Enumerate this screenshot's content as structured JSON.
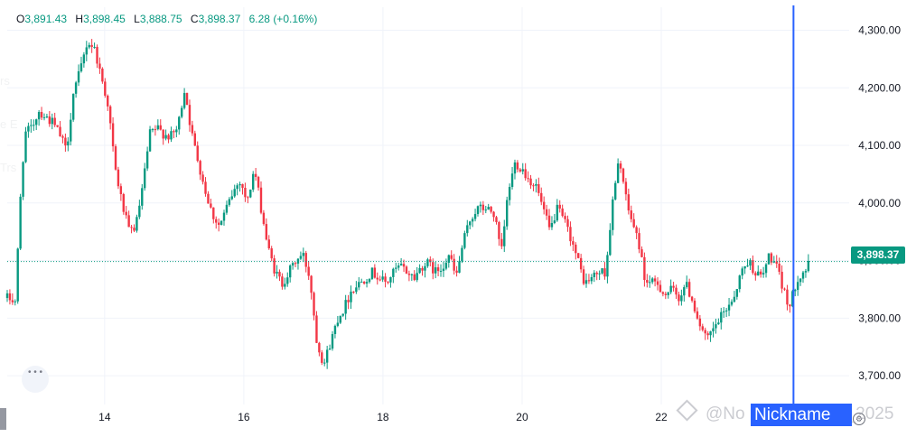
{
  "ohlc": {
    "o_label": "O",
    "o": "3,891.43",
    "h_label": "H",
    "h": "3,898.45",
    "l_label": "L",
    "l": "3,888.75",
    "c_label": "C",
    "c": "3,898.37",
    "change": "6.28 (+0.16%)"
  },
  "last_price": "3,898.37",
  "watermark": {
    "prefix": "@No",
    "highlight": "Nickname",
    "suffix": "_2025"
  },
  "ghost_text": [
    "rs",
    "e E",
    "Trs"
  ],
  "colors": {
    "up": "#089981",
    "down": "#f23645",
    "crosshair": "#2962ff",
    "grid": "#f0f3fa",
    "axis_text": "#131722"
  },
  "icons": {
    "settings": "gear-icon",
    "nav": "nav-dots-icon",
    "brand": "diamond-logo-icon"
  },
  "chart_data": {
    "type": "candlestick",
    "title": "",
    "xlabel": "",
    "ylabel": "",
    "x_ticks": [
      "14",
      "16",
      "18",
      "20",
      "22"
    ],
    "x_tick_positions_day": [
      14,
      16,
      18,
      20,
      22
    ],
    "x_range_day": [
      12.6,
      24.7
    ],
    "y_ticks": [
      "3,700.00",
      "3,800.00",
      "3,900.00",
      "4,000.00",
      "4,100.00",
      "4,200.00",
      "4,300.00"
    ],
    "y_tick_values": [
      3700,
      3800,
      3900,
      4000,
      4100,
      4200,
      4300
    ],
    "ylim": [
      3650,
      4340
    ],
    "last_close": 3898.37,
    "crosshair_day": 23.9,
    "grid": true,
    "path_days": [
      12.6,
      12.72,
      12.78,
      12.85,
      12.95,
      13.05,
      13.15,
      13.25,
      13.35,
      13.45,
      13.55,
      13.65,
      13.75,
      13.85,
      13.95,
      14.05,
      14.15,
      14.25,
      14.35,
      14.45,
      14.55,
      14.65,
      14.75,
      14.85,
      14.95,
      15.05,
      15.15,
      15.25,
      15.35,
      15.45,
      15.55,
      15.65,
      15.75,
      15.85,
      15.95,
      16.05,
      16.15,
      16.25,
      16.35,
      16.45,
      16.55,
      16.65,
      16.75,
      16.85,
      16.95,
      17.05,
      17.15,
      17.25,
      17.35,
      17.45,
      17.55,
      17.65,
      17.75,
      17.85,
      17.95,
      18.05,
      18.15,
      18.25,
      18.35,
      18.45,
      18.55,
      18.65,
      18.75,
      18.85,
      18.95,
      19.05,
      19.15,
      19.25,
      19.35,
      19.5,
      19.6,
      19.7,
      19.8,
      19.9,
      20.0,
      20.1,
      20.2,
      20.3,
      20.4,
      20.5,
      20.6,
      20.7,
      20.8,
      20.9,
      21.0,
      21.1,
      21.2,
      21.3,
      21.4,
      21.5,
      21.6,
      21.7,
      21.75,
      21.85,
      21.95,
      22.05,
      22.15,
      22.25,
      22.35,
      22.45,
      22.55,
      22.65,
      22.75,
      22.85,
      22.95,
      23.05,
      23.15,
      23.25,
      23.35,
      23.45,
      23.55,
      23.65,
      23.75,
      23.85,
      23.95,
      24.05,
      24.15
    ],
    "path_values": [
      3835,
      3830,
      3990,
      4120,
      4130,
      4160,
      4150,
      4140,
      4120,
      4090,
      4190,
      4230,
      4280,
      4270,
      4220,
      4170,
      4060,
      4000,
      3950,
      3960,
      4030,
      4120,
      4130,
      4120,
      4115,
      4130,
      4200,
      4120,
      4070,
      4020,
      3980,
      3960,
      3990,
      4020,
      4040,
      4000,
      4060,
      3990,
      3920,
      3880,
      3860,
      3880,
      3900,
      3910,
      3870,
      3760,
      3720,
      3760,
      3800,
      3820,
      3850,
      3860,
      3870,
      3880,
      3870,
      3860,
      3880,
      3890,
      3880,
      3870,
      3890,
      3895,
      3880,
      3890,
      3910,
      3870,
      3930,
      3970,
      3990,
      3990,
      3980,
      3910,
      4020,
      4070,
      4060,
      4040,
      4030,
      3990,
      3950,
      3990,
      3970,
      3940,
      3900,
      3860,
      3870,
      3880,
      3880,
      4000,
      4080,
      4000,
      3960,
      3920,
      3870,
      3860,
      3860,
      3840,
      3850,
      3835,
      3860,
      3830,
      3790,
      3760,
      3780,
      3800,
      3820,
      3840,
      3880,
      3900,
      3880,
      3870,
      3910,
      3890,
      3850,
      3820,
      3870,
      3880,
      3898
    ]
  }
}
